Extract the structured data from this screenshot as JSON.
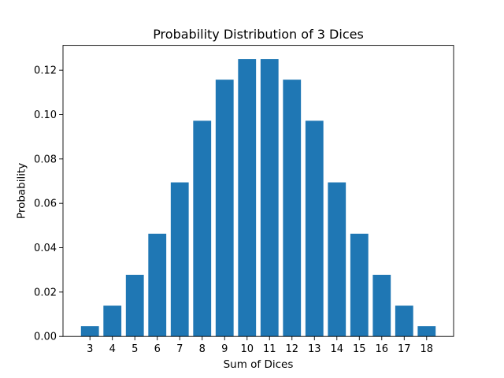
{
  "chart_data": {
    "type": "bar",
    "title": "Probability Distribution of 3 Dices",
    "xlabel": "Sum of Dices",
    "ylabel": "Probability",
    "categories": [
      "3",
      "4",
      "5",
      "6",
      "7",
      "8",
      "9",
      "10",
      "11",
      "12",
      "13",
      "14",
      "15",
      "16",
      "17",
      "18"
    ],
    "values": [
      0.00463,
      0.01389,
      0.02778,
      0.0463,
      0.06944,
      0.09722,
      0.11574,
      0.125,
      0.125,
      0.11574,
      0.09722,
      0.06944,
      0.0463,
      0.02778,
      0.01389,
      0.00463
    ],
    "ylim": [
      0,
      0.1312
    ],
    "yticks": [
      0.0,
      0.02,
      0.04,
      0.06,
      0.08,
      0.1,
      0.12
    ],
    "ytick_labels": [
      "0.00",
      "0.02",
      "0.04",
      "0.06",
      "0.08",
      "0.10",
      "0.12"
    ],
    "bar_color": "#1f77b4",
    "grid": false,
    "legend": "none"
  }
}
